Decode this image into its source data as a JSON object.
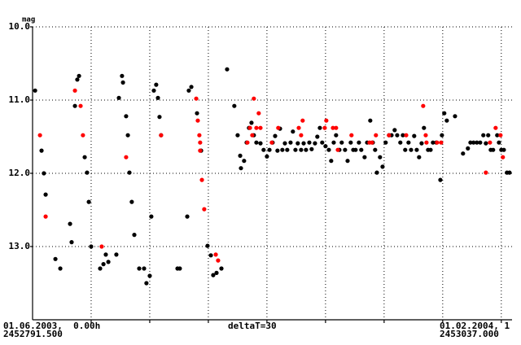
{
  "chart_data": {
    "type": "scatter",
    "ylabel": "mag",
    "ylabel_color": "#e8e800",
    "x_step_label": "deltaT=30",
    "xlim_labels": [
      {
        "date": "01.06.2003,  0.00h",
        "jd": "2452791.500"
      },
      {
        "date": "01.02.2004, 1",
        "jd": "2453037.000"
      }
    ],
    "xlim": [
      2452791.5,
      2453037.0
    ],
    "xticks": [
      2452821.5,
      2452851.5,
      2452881.5,
      2452911.5,
      2452941.5,
      2452971.5,
      2453001.5,
      2453031.5
    ],
    "ylim": [
      10,
      14
    ],
    "y_inverted": true,
    "yticks": [
      {
        "value": 10,
        "label": "10.0"
      },
      {
        "value": 11,
        "label": "11.0"
      },
      {
        "value": 12,
        "label": "12.0"
      },
      {
        "value": 13,
        "label": "13.0"
      }
    ],
    "grid": true,
    "series": [
      {
        "color": "#000000",
        "x": [
          2452792.8,
          2452796.1,
          2452797.3,
          2452798.2,
          2452803.2,
          2452805.7,
          2452810.7,
          2452811.5,
          2452813.2,
          2452814.4,
          2452815.3,
          2452818.2,
          2452819.4,
          2452820.3,
          2452821.5,
          2452826.1,
          2452827.8,
          2452829.0,
          2452830.3,
          2452834.4,
          2452835.7,
          2452837.3,
          2452837.8,
          2452839.4,
          2452840.3,
          2452841.1,
          2452842.3,
          2452843.6,
          2452846.1,
          2452848.6,
          2452849.8,
          2452851.5,
          2452852.3,
          2452853.6,
          2452854.8,
          2452855.7,
          2452856.5,
          2452857.3,
          2452865.7,
          2452866.9,
          2452870.7,
          2452871.5,
          2452872.8,
          2452875.7,
          2452877.8,
          2452881.1,
          2452882.8,
          2452884.0,
          2452885.7,
          2452888.2,
          2452891.1,
          2452894.8,
          2452896.5,
          2452897.8,
          2452898.2,
          2452899.8,
          2452901.1,
          2452902.3,
          2452903.6,
          2452904.8,
          2452906.1,
          2452908.2,
          2452909.8,
          2452911.5,
          2452912.8,
          2452914.4,
          2452915.7,
          2452916.9,
          2452918.2,
          2452919.4,
          2452920.7,
          2452921.9,
          2452923.6,
          2452924.8,
          2452926.1,
          2452927.3,
          2452929.0,
          2452930.3,
          2452931.5,
          2452933.2,
          2452934.4,
          2452936.1,
          2452937.3,
          2452938.6,
          2452939.8,
          2452941.5,
          2452943.2,
          2452944.4,
          2452945.7,
          2452946.9,
          2452948.6,
          2452949.8,
          2452951.5,
          2452952.8,
          2452954.4,
          2452955.7,
          2452956.9,
          2452958.6,
          2452959.8,
          2452961.5,
          2452962.8,
          2452964.4,
          2452965.7,
          2452966.9,
          2452967.8,
          2452969.4,
          2452970.7,
          2452972.3,
          2452974.0,
          2452975.3,
          2452976.9,
          2452978.2,
          2452979.8,
          2452981.1,
          2452982.3,
          2452984.0,
          2452985.3,
          2452986.9,
          2452988.2,
          2452989.4,
          2452990.7,
          2452991.9,
          2452994.0,
          2452995.3,
          2452996.5,
          2452998.2,
          2453000.3,
          2453001.1,
          2453002.3,
          2453003.6,
          2453007.8,
          2453011.9,
          2453014.4,
          2453015.7,
          2453017.3,
          2453019.0,
          2453020.7,
          2453022.3,
          2453023.6,
          2453024.8,
          2453026.1,
          2453027.3,
          2453029.4,
          2453030.3,
          2453031.5,
          2453032.8,
          2453034.4,
          2453035.7
        ],
        "values": [
          10.87,
          11.69,
          12.0,
          12.29,
          13.17,
          13.3,
          12.69,
          12.94,
          11.08,
          10.72,
          10.67,
          11.78,
          11.99,
          12.39,
          13.0,
          13.3,
          13.24,
          13.11,
          13.21,
          13.11,
          10.97,
          10.67,
          10.76,
          11.22,
          11.48,
          11.99,
          12.39,
          12.84,
          13.3,
          13.3,
          13.5,
          13.4,
          12.59,
          10.87,
          10.79,
          10.97,
          11.23,
          11.48,
          13.3,
          13.3,
          12.59,
          10.87,
          10.82,
          11.18,
          11.69,
          12.99,
          13.12,
          13.39,
          13.36,
          13.3,
          10.58,
          11.08,
          11.48,
          11.76,
          11.93,
          11.83,
          11.58,
          11.38,
          11.31,
          11.48,
          11.58,
          11.59,
          11.68,
          11.77,
          11.68,
          11.58,
          11.49,
          11.69,
          11.39,
          11.68,
          11.59,
          11.68,
          11.58,
          11.43,
          11.68,
          11.59,
          11.68,
          11.59,
          11.68,
          11.58,
          11.67,
          11.59,
          11.5,
          11.38,
          11.58,
          11.63,
          11.68,
          11.83,
          11.58,
          11.48,
          11.68,
          11.58,
          11.68,
          11.83,
          11.58,
          11.68,
          11.68,
          11.58,
          11.68,
          11.78,
          11.58,
          11.28,
          11.58,
          11.68,
          11.99,
          11.78,
          11.91,
          11.58,
          11.48,
          11.48,
          11.41,
          11.48,
          11.58,
          11.48,
          11.68,
          11.58,
          11.68,
          11.49,
          11.68,
          11.78,
          11.59,
          11.38,
          11.68,
          11.68,
          11.58,
          11.58,
          12.09,
          11.48,
          11.18,
          11.28,
          11.22,
          11.73,
          11.66,
          11.58,
          11.58,
          11.58,
          11.58,
          11.48,
          11.59,
          11.48,
          11.68,
          11.68,
          11.48,
          11.58,
          11.68,
          11.68,
          11.99,
          11.99
        ]
      },
      {
        "color": "#ff0000",
        "x": [
          2452795.3,
          2452798.2,
          2452813.2,
          2452816.1,
          2452817.3,
          2452826.9,
          2452839.4,
          2452857.3,
          2452875.3,
          2452876.1,
          2452876.9,
          2452877.3,
          2452877.3,
          2452878.2,
          2452879.4,
          2452885.3,
          2452886.5,
          2452901.5,
          2452902.8,
          2452904.0,
          2452904.8,
          2452906.1,
          2452907.3,
          2452908.2,
          2452914.0,
          2452917.3,
          2452927.8,
          2452929.0,
          2452929.8,
          2452941.1,
          2452941.9,
          2452945.3,
          2452946.9,
          2452947.8,
          2452954.8,
          2452964.0,
          2452965.3,
          2452967.3,
          2452974.0,
          2452982.8,
          2452991.5,
          2452992.8,
          2452993.2,
          2452998.6,
          2453000.7,
          2453023.6,
          2453025.7,
          2453028.6,
          2453031.1,
          2453032.3
        ],
        "values": [
          11.48,
          12.59,
          10.87,
          11.08,
          11.48,
          13.0,
          11.78,
          11.48,
          10.98,
          11.28,
          11.48,
          11.58,
          11.69,
          12.09,
          12.49,
          13.11,
          13.19,
          11.58,
          11.38,
          11.48,
          10.98,
          11.38,
          11.18,
          11.38,
          11.58,
          11.38,
          11.38,
          11.48,
          11.28,
          11.38,
          11.28,
          11.38,
          11.38,
          11.68,
          11.48,
          11.58,
          11.58,
          11.48,
          11.48,
          11.48,
          11.08,
          11.48,
          11.58,
          11.58,
          11.58,
          11.99,
          11.58,
          11.38,
          11.48,
          11.78
        ]
      }
    ]
  }
}
